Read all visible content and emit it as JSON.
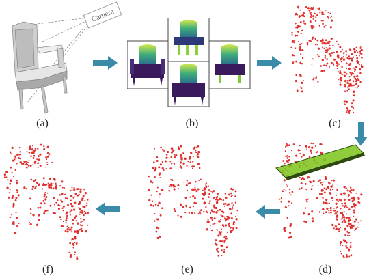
{
  "figure": {
    "camera_label": "Camera",
    "panel_labels": {
      "a": "(a)",
      "b": "(b)",
      "c": "(c)",
      "d": "(d)",
      "e": "(e)",
      "f": "(f)"
    }
  },
  "colors": {
    "arrow": "#3a8ba8",
    "points": "#e0312f",
    "chair_gray": "#d9d9d9",
    "depth_far": "#3b1a5c",
    "depth_mid": "#2f7f8e",
    "depth_near": "#c8e24a",
    "plane": "#7dc41a",
    "plane_dark": "#2e4a10"
  }
}
